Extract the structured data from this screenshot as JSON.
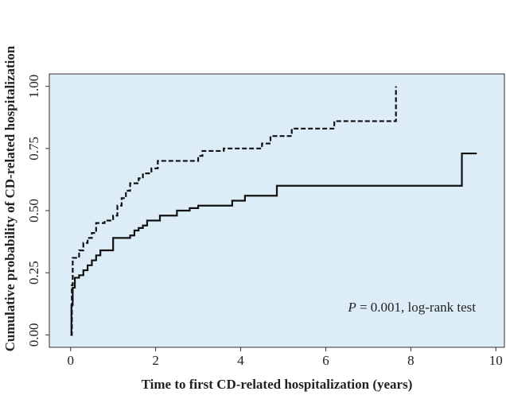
{
  "chart_data": {
    "type": "step",
    "xlabel": "Time to first CD-related hospitalization (years)",
    "ylabel": "Cumulative probability of CD-related hospitalization",
    "annotation": {
      "italic": "P",
      "text": "= 0.001, log-rank test"
    },
    "background": "#dcedf7",
    "xlim": [
      -0.5,
      10.2
    ],
    "xticks": [
      0,
      2,
      4,
      6,
      8,
      10
    ],
    "ylim": [
      -0.05,
      1.05
    ],
    "yticks": [
      {
        "value": 0,
        "label": "0.00"
      },
      {
        "value": 0.25,
        "label": "0.25"
      },
      {
        "value": 0.5,
        "label": "0.50"
      },
      {
        "value": 0.75,
        "label": "0.75"
      },
      {
        "value": 1,
        "label": "1.00"
      }
    ],
    "series": [
      {
        "color": "#111111",
        "dashed": true,
        "x": [
          0,
          0.03,
          0.05,
          0.2,
          0.3,
          0.4,
          0.5,
          0.6,
          0.8,
          1.0,
          1.1,
          1.2,
          1.3,
          1.4,
          1.6,
          1.7,
          1.9,
          2.05,
          3.0,
          3.1,
          3.6,
          4.5,
          4.7,
          5.2,
          6.2,
          7.65
        ],
        "values": [
          0,
          0.2,
          0.31,
          0.34,
          0.37,
          0.39,
          0.41,
          0.45,
          0.46,
          0.48,
          0.52,
          0.55,
          0.58,
          0.61,
          0.63,
          0.65,
          0.67,
          0.7,
          0.72,
          0.74,
          0.75,
          0.77,
          0.8,
          0.83,
          0.86,
          1.0
        ]
      },
      {
        "color": "#111111",
        "dashed": false,
        "x": [
          0,
          0.02,
          0.05,
          0.1,
          0.2,
          0.3,
          0.4,
          0.5,
          0.6,
          0.7,
          1.0,
          1.4,
          1.5,
          1.6,
          1.7,
          1.8,
          2.1,
          2.5,
          2.8,
          3.0,
          3.8,
          4.1,
          4.85,
          9.2,
          9.55
        ],
        "values": [
          0,
          0.12,
          0.19,
          0.23,
          0.24,
          0.26,
          0.28,
          0.3,
          0.32,
          0.34,
          0.39,
          0.4,
          0.42,
          0.43,
          0.44,
          0.46,
          0.48,
          0.5,
          0.51,
          0.52,
          0.54,
          0.56,
          0.6,
          0.73,
          0.73
        ]
      }
    ]
  }
}
